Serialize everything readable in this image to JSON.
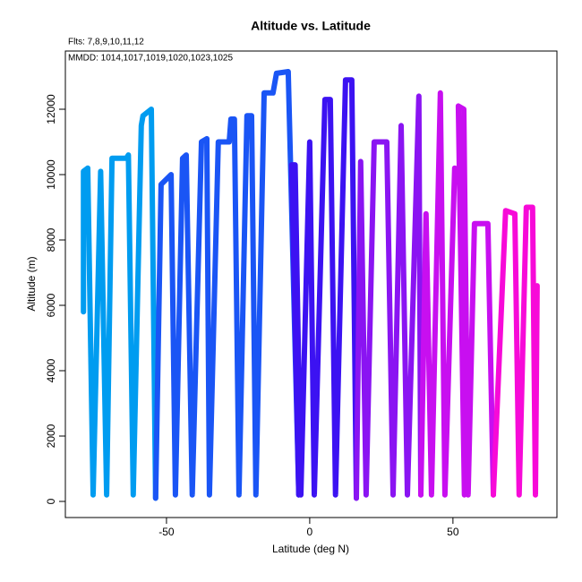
{
  "chart_data": {
    "type": "line",
    "title": "Altitude vs. Latitude",
    "notes": [
      "Flts: 7,8,9,10,11,12",
      "MMDD: 1014,1017,1019,1020,1023,1025"
    ],
    "xlabel": "Latitude (deg N)",
    "ylabel": "Altitude (m)",
    "xlim": [
      -85.3,
      86.3
    ],
    "ylim": [
      -493,
      13781
    ],
    "xticks": [
      -50,
      0,
      50
    ],
    "yticks": [
      0,
      2000,
      4000,
      6000,
      8000,
      10000,
      12000
    ],
    "series": [
      {
        "color": "#009cf0",
        "x": [
          -79,
          -79,
          -77.5,
          -75.6,
          -73,
          -70.9,
          -69,
          -64,
          -63.3,
          -61.6,
          -58.8,
          -58.2,
          -55.3,
          -53.8
        ],
        "values": [
          5800,
          10100,
          10200,
          200,
          10100,
          200,
          10500,
          10500,
          10600,
          200,
          11500,
          11800,
          12000,
          100
        ]
      },
      {
        "color": "#1a55f5",
        "x": [
          -53.8,
          -51.9,
          -48.4,
          -46.9,
          -44.4,
          -43.1,
          -41,
          -37.8,
          -35.9,
          -35,
          -31.9,
          -28.1,
          -27.5,
          -26.3,
          -24.7,
          -21.9,
          -20.3,
          -18.8,
          -15.9,
          -12.8,
          -11.6,
          -7.5,
          -3.8
        ],
        "values": [
          100,
          9700,
          10000,
          200,
          10500,
          10600,
          200,
          11000,
          11100,
          200,
          11000,
          11000,
          11700,
          11700,
          200,
          11800,
          11800,
          200,
          12500,
          12500,
          13100,
          13150,
          200
        ]
      },
      {
        "color": "#3c12f2",
        "x": [
          -3.8,
          -6.3,
          -5.1,
          -3.1,
          0,
          1.6,
          5.3,
          7.2,
          9,
          12.5,
          14.7,
          16.3
        ],
        "values": [
          200,
          10300,
          10300,
          200,
          11000,
          200,
          12300,
          12300,
          200,
          12900,
          12900,
          100
        ]
      },
      {
        "color": "#8a14f2",
        "x": [
          16.3,
          17.8,
          19.7,
          22.5,
          26.9,
          29.1,
          31.9,
          34.1,
          38.1,
          38.8
        ],
        "values": [
          100,
          10400,
          200,
          11000,
          11000,
          200,
          11500,
          200,
          12400,
          200
        ]
      },
      {
        "color": "#c80ff0",
        "x": [
          38.8,
          40.6,
          42.5,
          45.6,
          47.2,
          50.6,
          52.5,
          54,
          51.9,
          53.8,
          55.3,
          57.5,
          62.2,
          64.1
        ],
        "values": [
          200,
          8800,
          200,
          12500,
          200,
          10200,
          10100,
          200,
          12100,
          12000,
          200,
          8500,
          8500,
          200
        ]
      },
      {
        "color": "#f70ad8",
        "x": [
          64.1,
          68.4,
          71.6,
          73.1,
          75.6,
          77.8,
          78.8,
          79.4
        ],
        "values": [
          200,
          8900,
          8800,
          200,
          9000,
          9000,
          200,
          6600
        ]
      }
    ]
  }
}
